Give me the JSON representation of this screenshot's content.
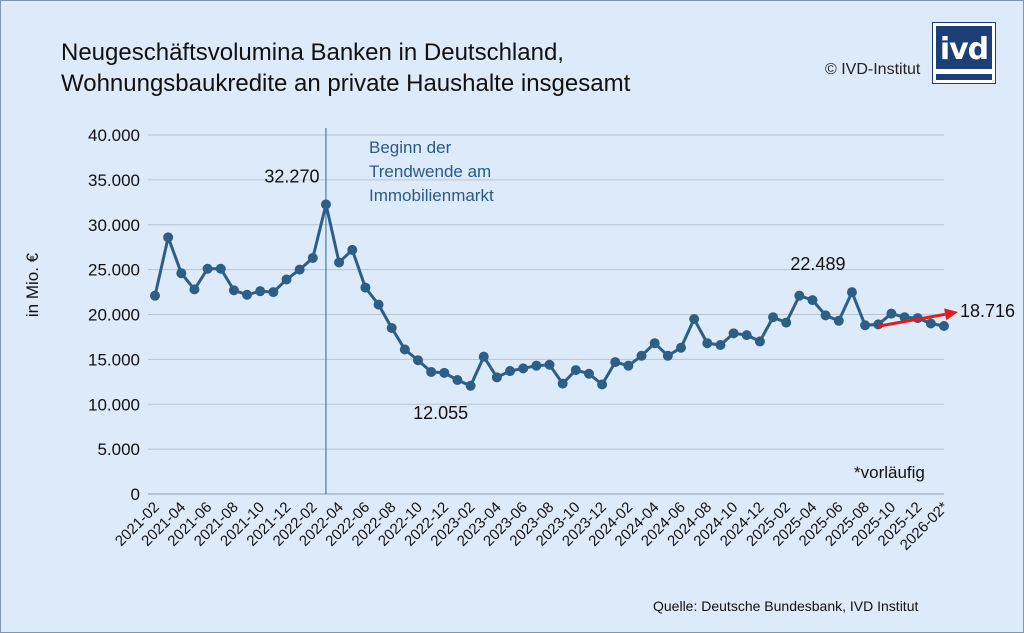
{
  "title_lines": [
    "Neugeschäftsvolumina Banken in Deutschland,",
    "Wohnungsbaukredite an private Haushalte insgesamt"
  ],
  "copyright": "© IVD-Institut",
  "logo_text": "ivd",
  "source": "Quelle: Deutsche Bundesbank, IVD Institut",
  "colors": {
    "background": "#ddeafa",
    "line": "#2d5f86",
    "arrow": "#e21b1b",
    "grid": "#b8c4d2",
    "logo": "#1c3f78"
  },
  "chart_data": {
    "type": "line",
    "ylabel": "in Mio. €",
    "ylim": [
      0,
      40000
    ],
    "yticks": [
      0,
      5000,
      10000,
      15000,
      20000,
      25000,
      30000,
      35000,
      40000
    ],
    "ytick_labels": [
      "0",
      "5.000",
      "10.000",
      "15.000",
      "20.000",
      "25.000",
      "30.000",
      "35.000",
      "40.000"
    ],
    "x": [
      "2021-02",
      "2021-03",
      "2021-04",
      "2021-05",
      "2021-06",
      "2021-07",
      "2021-08",
      "2021-09",
      "2021-10",
      "2021-11",
      "2021-12",
      "2022-01",
      "2022-02",
      "2022-03",
      "2022-04",
      "2022-05",
      "2022-06",
      "2022-07",
      "2022-08",
      "2022-09",
      "2022-10",
      "2022-11",
      "2022-12",
      "2023-01",
      "2023-02",
      "2023-03",
      "2023-04",
      "2023-05",
      "2023-06",
      "2023-07",
      "2023-08",
      "2023-09",
      "2023-10",
      "2023-11",
      "2023-12",
      "2024-01",
      "2024-02",
      "2024-03",
      "2024-04",
      "2024-05",
      "2024-06",
      "2024-07",
      "2024-08",
      "2024-09",
      "2024-10",
      "2024-11",
      "2024-12",
      "2025-01",
      "2025-02",
      "2025-03",
      "2025-04",
      "2025-05",
      "2025-06",
      "2025-07",
      "2025-08",
      "2025-09",
      "2025-10",
      "2025-11",
      "2025-12",
      "2026-01",
      "2026-02"
    ],
    "xtick_labels": [
      "2021-02",
      "2021-04",
      "2021-06",
      "2021-08",
      "2021-10",
      "2021-12",
      "2022-02",
      "2022-04",
      "2022-06",
      "2022-08",
      "2022-10",
      "2022-12",
      "2023-02",
      "2023-04",
      "2023-06",
      "2023-08",
      "2023-10",
      "2023-12",
      "2024-02",
      "2024-04",
      "2024-06",
      "2024-08",
      "2024-10",
      "2024-12",
      "2025-02",
      "2025-04",
      "2025-06",
      "2025-08",
      "2025-10",
      "2025-12",
      "2026-02*"
    ],
    "values": [
      22100,
      28600,
      24600,
      22800,
      25100,
      25100,
      22700,
      22200,
      22600,
      22500,
      23900,
      25000,
      26300,
      32270,
      25800,
      27200,
      23000,
      21100,
      18500,
      16100,
      14900,
      13600,
      13500,
      12700,
      12055,
      15300,
      13000,
      13700,
      14000,
      14300,
      14400,
      12300,
      13800,
      13400,
      12200,
      14700,
      14300,
      15400,
      16800,
      15400,
      16300,
      19500,
      16800,
      16600,
      17900,
      17700,
      17000,
      19700,
      19100,
      22100,
      21600,
      19900,
      19300,
      22489,
      18800,
      18900,
      20100,
      19700,
      19600,
      19000,
      18716
    ],
    "data_labels": [
      {
        "index": 13,
        "text": "32.270",
        "position": "above"
      },
      {
        "index": 24,
        "text": "12.055",
        "position": "below"
      },
      {
        "index": 53,
        "text": "22.489",
        "position": "above"
      },
      {
        "index": 60,
        "text": "18.716",
        "position": "right"
      }
    ],
    "vertical_line_at": "2022-03",
    "annotation_lines": [
      "Beginn der",
      "Trendwende am",
      "Immobilienmarkt"
    ],
    "trend_arrow": {
      "from": "2025-08",
      "to": "2026-02"
    },
    "note": "*vorläufig",
    "grid": true,
    "legend": "none"
  }
}
